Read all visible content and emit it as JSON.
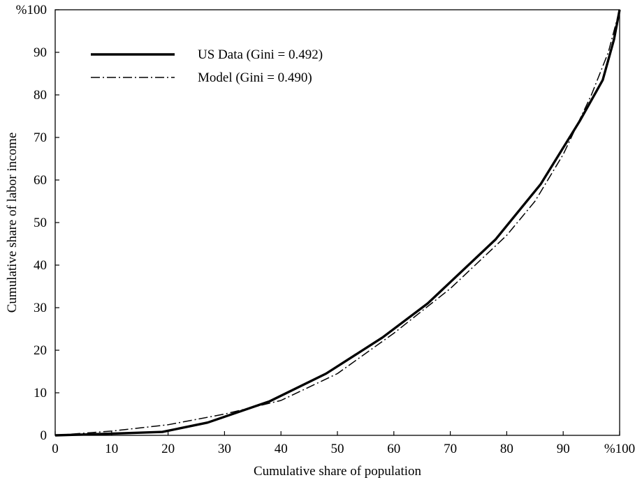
{
  "chart_data": {
    "type": "line",
    "title": "",
    "xlabel": "Cumulative share of population",
    "ylabel": "Cumulative share of labor income",
    "xlim": [
      0,
      100
    ],
    "ylim": [
      0,
      100
    ],
    "x_ticks": [
      "0",
      "10",
      "20",
      "30",
      "40",
      "50",
      "60",
      "70",
      "80",
      "90",
      "%100"
    ],
    "y_ticks": [
      "0",
      "10",
      "20",
      "30",
      "40",
      "50",
      "60",
      "70",
      "80",
      "90",
      "%100"
    ],
    "grid": false,
    "legend_position": "top-left",
    "series": [
      {
        "name": "US Data (Gini = 0.492)",
        "style": "solid",
        "color": "#000000",
        "x": [
          0,
          5,
          10,
          19,
          27,
          38,
          48,
          58,
          66,
          78,
          86,
          93,
          97,
          99,
          100
        ],
        "y": [
          0,
          0.2,
          0.4,
          0.8,
          3,
          8,
          14.5,
          23,
          31,
          46,
          59,
          74,
          83.5,
          93,
          100
        ]
      },
      {
        "name": "Model (Gini = 0.490)",
        "style": "dash-dot",
        "color": "#000000",
        "x": [
          0,
          10,
          20,
          30,
          40,
          50,
          60,
          70,
          80,
          85,
          90,
          95,
          98,
          100
        ],
        "y": [
          0,
          1,
          2.5,
          5,
          8.2,
          14.5,
          24,
          34.5,
          47,
          55,
          66,
          80,
          90,
          100
        ]
      }
    ]
  }
}
